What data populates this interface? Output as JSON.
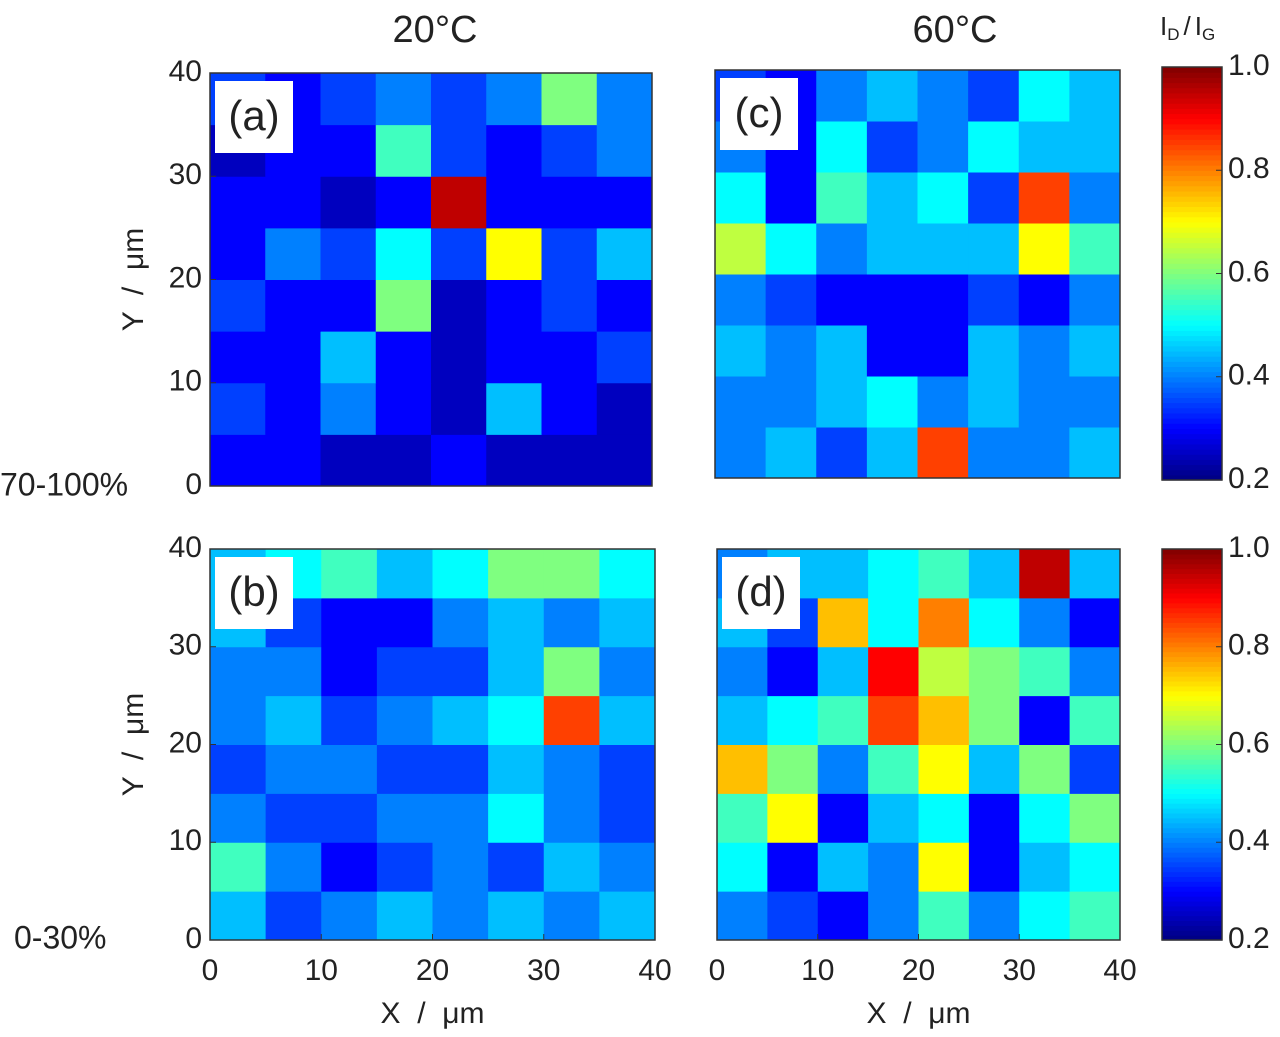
{
  "figure": {
    "column_titles": [
      "20°C",
      "60°C"
    ],
    "row_labels": [
      "70-100%",
      "0-30%"
    ],
    "colorbar_label": {
      "numerator": "I",
      "numerator_sub": "D",
      "separator": "/",
      "denominator": "I",
      "denominator_sub": "G"
    }
  },
  "chart_data": [
    {
      "type": "heatmap",
      "panel_label": "(a)",
      "colormap": "jet",
      "x": [
        2.5,
        7.5,
        12.5,
        17.5,
        22.5,
        27.5,
        32.5,
        37.5
      ],
      "y": [
        2.5,
        7.5,
        12.5,
        17.5,
        22.5,
        27.5,
        32.5,
        37.5
      ],
      "z": [
        [
          0.3,
          0.3,
          0.25,
          0.25,
          0.3,
          0.25,
          0.25,
          0.25
        ],
        [
          0.35,
          0.3,
          0.4,
          0.3,
          0.25,
          0.45,
          0.3,
          0.25
        ],
        [
          0.3,
          0.3,
          0.45,
          0.3,
          0.25,
          0.3,
          0.3,
          0.35
        ],
        [
          0.35,
          0.3,
          0.3,
          0.6,
          0.25,
          0.3,
          0.35,
          0.3
        ],
        [
          0.3,
          0.4,
          0.35,
          0.5,
          0.35,
          0.7,
          0.35,
          0.45
        ],
        [
          0.3,
          0.3,
          0.25,
          0.3,
          0.95,
          0.3,
          0.3,
          0.3
        ],
        [
          0.25,
          0.3,
          0.3,
          0.55,
          0.35,
          0.3,
          0.35,
          0.4
        ],
        [
          0.35,
          0.3,
          0.35,
          0.4,
          0.35,
          0.4,
          0.6,
          0.4
        ]
      ],
      "xlim": [
        0,
        40
      ],
      "ylim": [
        0,
        40
      ],
      "yticks": [
        0,
        10,
        20,
        30,
        40
      ],
      "ylabel": "Y  /  μm",
      "zlim": [
        0.2,
        1.0
      ]
    },
    {
      "type": "heatmap",
      "panel_label": "(c)",
      "colormap": "jet",
      "x": [
        2.5,
        7.5,
        12.5,
        17.5,
        22.5,
        27.5,
        32.5,
        37.5
      ],
      "y": [
        2.5,
        7.5,
        12.5,
        17.5,
        22.5,
        27.5,
        32.5,
        37.5
      ],
      "z": [
        [
          0.4,
          0.45,
          0.35,
          0.45,
          0.85,
          0.4,
          0.4,
          0.45
        ],
        [
          0.4,
          0.4,
          0.45,
          0.5,
          0.4,
          0.45,
          0.4,
          0.4
        ],
        [
          0.45,
          0.4,
          0.45,
          0.3,
          0.3,
          0.45,
          0.4,
          0.45
        ],
        [
          0.4,
          0.35,
          0.3,
          0.3,
          0.3,
          0.35,
          0.3,
          0.4
        ],
        [
          0.65,
          0.5,
          0.4,
          0.45,
          0.45,
          0.45,
          0.7,
          0.55
        ],
        [
          0.5,
          0.3,
          0.55,
          0.45,
          0.5,
          0.35,
          0.85,
          0.4
        ],
        [
          0.4,
          0.3,
          0.5,
          0.35,
          0.4,
          0.5,
          0.45,
          0.45
        ],
        [
          0.35,
          0.3,
          0.4,
          0.45,
          0.4,
          0.35,
          0.5,
          0.45
        ]
      ],
      "xlim": [
        0,
        40
      ],
      "ylim": [
        0,
        40
      ],
      "zlim": [
        0.2,
        1.0
      ],
      "colorbar": true,
      "zticks": [
        0.2,
        0.4,
        0.6,
        0.8,
        {
          "value": 1.0,
          "label": "1.0"
        }
      ]
    },
    {
      "type": "heatmap",
      "panel_label": "(b)",
      "colormap": "jet",
      "x": [
        2.5,
        7.5,
        12.5,
        17.5,
        22.5,
        27.5,
        32.5,
        37.5
      ],
      "y": [
        2.5,
        7.5,
        12.5,
        17.5,
        22.5,
        27.5,
        32.5,
        37.5
      ],
      "z": [
        [
          0.45,
          0.35,
          0.4,
          0.45,
          0.4,
          0.45,
          0.4,
          0.45
        ],
        [
          0.55,
          0.4,
          0.3,
          0.35,
          0.4,
          0.35,
          0.45,
          0.4
        ],
        [
          0.4,
          0.35,
          0.35,
          0.4,
          0.4,
          0.5,
          0.4,
          0.35
        ],
        [
          0.35,
          0.4,
          0.4,
          0.35,
          0.35,
          0.45,
          0.4,
          0.35
        ],
        [
          0.4,
          0.45,
          0.35,
          0.4,
          0.45,
          0.5,
          0.85,
          0.45
        ],
        [
          0.4,
          0.4,
          0.3,
          0.35,
          0.35,
          0.45,
          0.6,
          0.4
        ],
        [
          0.45,
          0.35,
          0.3,
          0.3,
          0.4,
          0.45,
          0.4,
          0.45
        ],
        [
          0.45,
          0.5,
          0.55,
          0.45,
          0.5,
          0.6,
          0.6,
          0.5
        ]
      ],
      "xlim": [
        0,
        40
      ],
      "ylim": [
        0,
        40
      ],
      "xticks": [
        0,
        10,
        20,
        30,
        40
      ],
      "yticks": [
        0,
        10,
        20,
        30,
        40
      ],
      "xlabel": "X  /  μm",
      "ylabel": "Y  /  μm",
      "zlim": [
        0.2,
        1.0
      ]
    },
    {
      "type": "heatmap",
      "panel_label": "(d)",
      "colormap": "jet",
      "x": [
        2.5,
        7.5,
        12.5,
        17.5,
        22.5,
        27.5,
        32.5,
        37.5
      ],
      "y": [
        2.5,
        7.5,
        12.5,
        17.5,
        22.5,
        27.5,
        32.5,
        37.5
      ],
      "z": [
        [
          0.4,
          0.35,
          0.3,
          0.4,
          0.55,
          0.4,
          0.5,
          0.55
        ],
        [
          0.5,
          0.3,
          0.45,
          0.4,
          0.7,
          0.3,
          0.45,
          0.5
        ],
        [
          0.55,
          0.7,
          0.3,
          0.45,
          0.5,
          0.3,
          0.5,
          0.6
        ],
        [
          0.75,
          0.6,
          0.4,
          0.55,
          0.7,
          0.45,
          0.6,
          0.35
        ],
        [
          0.45,
          0.5,
          0.55,
          0.85,
          0.75,
          0.6,
          0.3,
          0.55
        ],
        [
          0.4,
          0.3,
          0.45,
          0.9,
          0.65,
          0.6,
          0.55,
          0.4
        ],
        [
          0.45,
          0.35,
          0.75,
          0.5,
          0.8,
          0.5,
          0.4,
          0.3
        ],
        [
          0.4,
          0.45,
          0.45,
          0.5,
          0.55,
          0.45,
          0.95,
          0.45
        ]
      ],
      "xlim": [
        0,
        40
      ],
      "ylim": [
        0,
        40
      ],
      "xticks": [
        0,
        10,
        20,
        30,
        40
      ],
      "xlabel": "X  /  μm",
      "zlim": [
        0.2,
        1.0
      ],
      "colorbar": true,
      "zticks": [
        0.2,
        0.4,
        0.6,
        0.8,
        {
          "value": 1.0,
          "label": "1.0"
        }
      ]
    }
  ]
}
